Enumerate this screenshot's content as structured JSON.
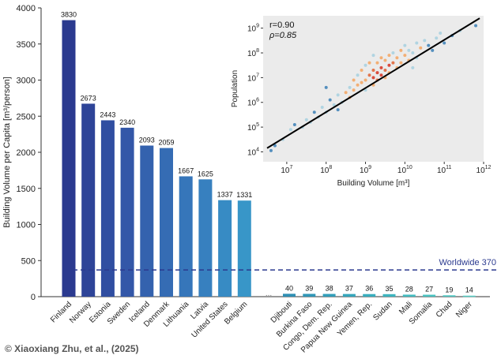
{
  "credit": "© Xiaoxiang Zhu, et al., (2025)",
  "chart_data": [
    {
      "type": "bar",
      "ylabel": "Building Volume per Capita [m³/person]",
      "ylim": [
        0,
        4000
      ],
      "yticks": [
        0,
        500,
        1000,
        1500,
        2000,
        2500,
        3000,
        3500,
        4000
      ],
      "gap_label": "...",
      "top_countries": [
        {
          "name": "Finland",
          "value": 3830,
          "label": "3830",
          "color": "#2b3a8f"
        },
        {
          "name": "Norway",
          "value": 2673,
          "label": "2673",
          "color": "#2e4498"
        },
        {
          "name": "Estonia",
          "value": 2443,
          "label": "2443",
          "color": "#304ea1"
        },
        {
          "name": "Sweden",
          "value": 2340,
          "label": "2340",
          "color": "#3357a8"
        },
        {
          "name": "Iceland",
          "value": 2093,
          "label": "2093",
          "color": "#3462ae"
        },
        {
          "name": "Denmark",
          "value": 2059,
          "label": "2059",
          "color": "#356cb4"
        },
        {
          "name": "Lithuania",
          "value": 1667,
          "label": "1667",
          "color": "#3676ba"
        },
        {
          "name": "Latvia",
          "value": 1625,
          "label": "1625",
          "color": "#3780bf"
        },
        {
          "name": "United States",
          "value": 1337,
          "label": "1337",
          "color": "#378bc4"
        },
        {
          "name": "Belgium",
          "value": 1331,
          "label": "1331",
          "color": "#3896c8"
        }
      ],
      "bottom_countries": [
        {
          "name": "Djibouti",
          "value": 40,
          "label": "40",
          "color": "#2f8fb3"
        },
        {
          "name": "Burkina Faso",
          "value": 39,
          "label": "39",
          "color": "#3096b6"
        },
        {
          "name": "Congo, Dem. Rep.",
          "value": 38,
          "label": "38",
          "color": "#329eb9"
        },
        {
          "name": "Papua New Guinea",
          "value": 37,
          "label": "37",
          "color": "#35a6bb"
        },
        {
          "name": "Yemen, Rep.",
          "value": 36,
          "label": "36",
          "color": "#38adbd"
        },
        {
          "name": "Sudan",
          "value": 35,
          "label": "35",
          "color": "#3cb4be"
        },
        {
          "name": "Mali",
          "value": 28,
          "label": "28",
          "color": "#42bbbf"
        },
        {
          "name": "Somalia",
          "value": 27,
          "label": "27",
          "color": "#48c1c0"
        },
        {
          "name": "Chad",
          "value": 19,
          "label": "19",
          "color": "#4fc6c1"
        },
        {
          "name": "Niger",
          "value": 14,
          "label": "14",
          "color": "#57cbc2"
        }
      ],
      "reference_line": {
        "value": 370,
        "label": "Worldwide 370",
        "color": "#2b3a8f"
      }
    },
    {
      "type": "scatter",
      "xlabel": "Building Volume [m³]",
      "ylabel": "Population",
      "x_scale": "log",
      "y_scale": "log",
      "xlim_exp": [
        6.4,
        12
      ],
      "ylim_exp": [
        3.6,
        9.5
      ],
      "x_tick_exps": [
        7,
        8,
        9,
        10,
        11,
        12
      ],
      "y_tick_exps": [
        4,
        5,
        6,
        7,
        8,
        9
      ],
      "stats": {
        "r": "r=0.90",
        "rho": "ρ=0.85"
      },
      "fit_line_exp": {
        "from": [
          6.5,
          4.15
        ],
        "to": [
          11.9,
          9.4
        ]
      },
      "background": "#ebebeb",
      "points": [
        {
          "x": 6.6,
          "y": 4.05,
          "c": "#3a7fb6"
        },
        {
          "x": 6.7,
          "y": 4.25,
          "c": "#3a7fb6"
        },
        {
          "x": 6.9,
          "y": 4.5,
          "c": "#a6d0df"
        },
        {
          "x": 7.1,
          "y": 4.9,
          "c": "#a6d0df"
        },
        {
          "x": 7.2,
          "y": 5.1,
          "c": "#3a7fb6"
        },
        {
          "x": 7.4,
          "y": 5.0,
          "c": "#a6d0df"
        },
        {
          "x": 7.5,
          "y": 5.3,
          "c": "#a6d0df"
        },
        {
          "x": 7.6,
          "y": 5.2,
          "c": "#a6d0df"
        },
        {
          "x": 7.7,
          "y": 5.6,
          "c": "#3a7fb6"
        },
        {
          "x": 7.8,
          "y": 5.4,
          "c": "#a6d0df"
        },
        {
          "x": 7.9,
          "y": 5.8,
          "c": "#a6d0df"
        },
        {
          "x": 8.0,
          "y": 5.6,
          "c": "#a6d0df"
        },
        {
          "x": 8.1,
          "y": 6.1,
          "c": "#3a7fb6"
        },
        {
          "x": 8.2,
          "y": 5.9,
          "c": "#a6d0df"
        },
        {
          "x": 8.3,
          "y": 6.3,
          "c": "#a6d0df"
        },
        {
          "x": 8.4,
          "y": 6.0,
          "c": "#a6d0df"
        },
        {
          "x": 8.5,
          "y": 6.4,
          "c": "#f4a460"
        },
        {
          "x": 8.6,
          "y": 6.6,
          "c": "#a6d0df"
        },
        {
          "x": 8.6,
          "y": 6.2,
          "c": "#f4a460"
        },
        {
          "x": 8.7,
          "y": 6.9,
          "c": "#f4a460"
        },
        {
          "x": 8.7,
          "y": 6.5,
          "c": "#f4a460"
        },
        {
          "x": 8.8,
          "y": 6.7,
          "c": "#f4a460"
        },
        {
          "x": 8.8,
          "y": 7.1,
          "c": "#a6d0df"
        },
        {
          "x": 8.9,
          "y": 6.8,
          "c": "#f4a460"
        },
        {
          "x": 8.9,
          "y": 7.3,
          "c": "#f4a460"
        },
        {
          "x": 9.0,
          "y": 6.9,
          "c": "#f4a460"
        },
        {
          "x": 9.0,
          "y": 7.5,
          "c": "#a6d0df"
        },
        {
          "x": 9.0,
          "y": 6.5,
          "c": "#a6d0df"
        },
        {
          "x": 9.1,
          "y": 7.1,
          "c": "#e06030"
        },
        {
          "x": 9.1,
          "y": 7.6,
          "c": "#f4a460"
        },
        {
          "x": 9.2,
          "y": 7.0,
          "c": "#d7301f"
        },
        {
          "x": 9.2,
          "y": 7.3,
          "c": "#e06030"
        },
        {
          "x": 9.2,
          "y": 6.7,
          "c": "#f4a460"
        },
        {
          "x": 9.3,
          "y": 7.2,
          "c": "#d7301f"
        },
        {
          "x": 9.3,
          "y": 7.6,
          "c": "#f4a460"
        },
        {
          "x": 9.3,
          "y": 6.9,
          "c": "#e06030"
        },
        {
          "x": 9.4,
          "y": 7.1,
          "c": "#d7301f"
        },
        {
          "x": 9.4,
          "y": 7.4,
          "c": "#d7301f"
        },
        {
          "x": 9.4,
          "y": 7.8,
          "c": "#f4a460"
        },
        {
          "x": 9.5,
          "y": 7.3,
          "c": "#e06030"
        },
        {
          "x": 9.5,
          "y": 7.0,
          "c": "#f4a460"
        },
        {
          "x": 9.5,
          "y": 7.7,
          "c": "#f4a460"
        },
        {
          "x": 9.6,
          "y": 7.5,
          "c": "#d7301f"
        },
        {
          "x": 9.6,
          "y": 7.9,
          "c": "#f4a460"
        },
        {
          "x": 9.6,
          "y": 7.2,
          "c": "#f4a460"
        },
        {
          "x": 9.7,
          "y": 7.6,
          "c": "#e06030"
        },
        {
          "x": 9.7,
          "y": 8.0,
          "c": "#a6d0df"
        },
        {
          "x": 9.8,
          "y": 7.4,
          "c": "#f4a460"
        },
        {
          "x": 9.8,
          "y": 7.8,
          "c": "#f4a460"
        },
        {
          "x": 9.9,
          "y": 8.1,
          "c": "#f4a460"
        },
        {
          "x": 9.9,
          "y": 7.6,
          "c": "#f4a460"
        },
        {
          "x": 10.0,
          "y": 7.9,
          "c": "#f4a460"
        },
        {
          "x": 10.0,
          "y": 8.3,
          "c": "#a6d0df"
        },
        {
          "x": 10.1,
          "y": 7.7,
          "c": "#f4a460"
        },
        {
          "x": 10.1,
          "y": 8.1,
          "c": "#a6d0df"
        },
        {
          "x": 10.2,
          "y": 8.0,
          "c": "#a6d0df"
        },
        {
          "x": 10.3,
          "y": 8.4,
          "c": "#a6d0df"
        },
        {
          "x": 10.3,
          "y": 7.8,
          "c": "#a6d0df"
        },
        {
          "x": 10.4,
          "y": 8.2,
          "c": "#f4a460"
        },
        {
          "x": 10.5,
          "y": 8.5,
          "c": "#a6d0df"
        },
        {
          "x": 10.6,
          "y": 8.3,
          "c": "#3a7fb6"
        },
        {
          "x": 10.7,
          "y": 8.1,
          "c": "#3a7fb6"
        },
        {
          "x": 10.8,
          "y": 8.6,
          "c": "#a6d0df"
        },
        {
          "x": 10.9,
          "y": 8.8,
          "c": "#a6d0df"
        },
        {
          "x": 11.0,
          "y": 8.4,
          "c": "#3a7fb6"
        },
        {
          "x": 11.2,
          "y": 8.7,
          "c": "#3a7fb6"
        },
        {
          "x": 11.4,
          "y": 8.9,
          "c": "#a6d0df"
        },
        {
          "x": 11.8,
          "y": 9.1,
          "c": "#3a7fb6"
        },
        {
          "x": 8.3,
          "y": 5.7,
          "c": "#3a7fb6"
        },
        {
          "x": 9.2,
          "y": 7.9,
          "c": "#a6d0df"
        },
        {
          "x": 10.2,
          "y": 7.4,
          "c": "#a6d0df"
        },
        {
          "x": 8.0,
          "y": 6.6,
          "c": "#3a7fb6"
        }
      ]
    }
  ]
}
